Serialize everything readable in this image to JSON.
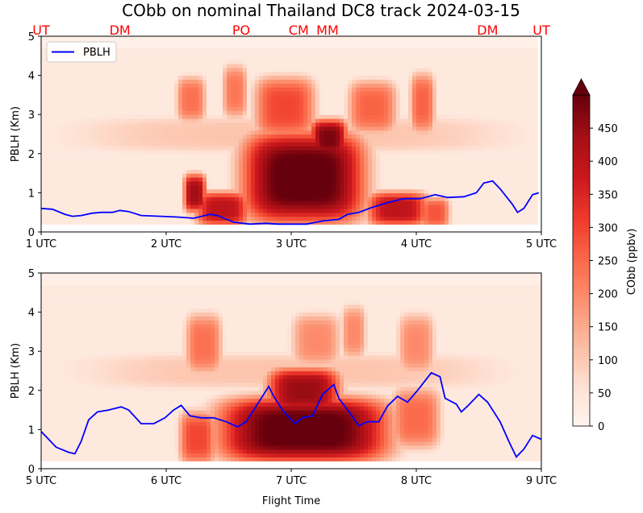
{
  "chart_data": {
    "type": "heatmap",
    "title": "CObb on nominal Thailand DC8 track 2024-03-15",
    "xlabel": "Flight Time",
    "colorbar": {
      "label": "CObb (ppbv)",
      "ticks": [
        0,
        50,
        100,
        150,
        200,
        250,
        300,
        350,
        400,
        450
      ],
      "range": [
        0,
        500
      ],
      "extend": "max",
      "colormap": "Reds",
      "stops": [
        "#fff5f0",
        "#fee0d2",
        "#fcbba1",
        "#fc9272",
        "#fb6a4a",
        "#ef3b2c",
        "#cb181d",
        "#a50f15",
        "#67000d"
      ]
    },
    "stations": [
      {
        "label": "UT",
        "t": 1.0
      },
      {
        "label": "DM",
        "t": 1.63
      },
      {
        "label": "PO",
        "t": 2.6
      },
      {
        "label": "CM",
        "t": 3.06
      },
      {
        "label": "MM",
        "t": 3.29
      },
      {
        "label": "DM",
        "t": 4.57
      },
      {
        "label": "UT",
        "t": 5.0
      }
    ],
    "legend": {
      "label": "PBLH",
      "color": "#0000ff",
      "placement": "upper-left"
    },
    "panels": [
      {
        "ylabel": "PBLH (Km)",
        "ylim": [
          0,
          5
        ],
        "xlim": [
          1,
          5
        ],
        "yticks": [
          "0",
          "1",
          "2",
          "3",
          "4",
          "5"
        ],
        "xticks": [
          {
            "t": 1,
            "label": "1 UTC"
          },
          {
            "t": 2,
            "label": "2 UTC"
          },
          {
            "t": 3,
            "label": "3 UTC"
          },
          {
            "t": 4,
            "label": "4 UTC"
          },
          {
            "t": 5,
            "label": "5 UTC"
          }
        ],
        "data_tmax": 4.96,
        "plumes": [
          {
            "t": 3.1,
            "z": 1.4,
            "st": 0.5,
            "sz": 1.2,
            "v": 520
          },
          {
            "t": 3.3,
            "z": 2.4,
            "st": 0.15,
            "sz": 0.5,
            "v": 480
          },
          {
            "t": 2.23,
            "z": 1.0,
            "st": 0.09,
            "sz": 0.5,
            "v": 440
          },
          {
            "t": 2.45,
            "z": 0.6,
            "st": 0.22,
            "sz": 0.45,
            "v": 400
          },
          {
            "t": 3.85,
            "z": 0.6,
            "st": 0.25,
            "sz": 0.45,
            "v": 400
          },
          {
            "t": 4.15,
            "z": 0.5,
            "st": 0.12,
            "sz": 0.4,
            "v": 280
          },
          {
            "t": 2.2,
            "z": 3.4,
            "st": 0.12,
            "sz": 0.6,
            "v": 240
          },
          {
            "t": 2.55,
            "z": 3.6,
            "st": 0.1,
            "sz": 0.7,
            "v": 230
          },
          {
            "t": 2.95,
            "z": 3.2,
            "st": 0.25,
            "sz": 0.8,
            "v": 300
          },
          {
            "t": 3.65,
            "z": 3.2,
            "st": 0.2,
            "sz": 0.7,
            "v": 260
          },
          {
            "t": 4.05,
            "z": 3.3,
            "st": 0.1,
            "sz": 0.8,
            "v": 260
          },
          {
            "t": 3.0,
            "z": 2.5,
            "st": 1.9,
            "sz": 0.5,
            "v": 110
          }
        ],
        "pblh": {
          "t": [
            1.0,
            1.09,
            1.19,
            1.25,
            1.32,
            1.41,
            1.48,
            1.57,
            1.63,
            1.7,
            1.8,
            1.96,
            2.09,
            2.22,
            2.35,
            2.41,
            2.54,
            2.67,
            2.8,
            2.89,
            3.12,
            3.25,
            3.38,
            3.45,
            3.54,
            3.64,
            3.77,
            3.9,
            4.03,
            4.15,
            4.25,
            4.38,
            4.48,
            4.54,
            4.61,
            4.67,
            4.77,
            4.81,
            4.86,
            4.93,
            4.98
          ],
          "z": [
            0.6,
            0.58,
            0.45,
            0.4,
            0.42,
            0.48,
            0.5,
            0.5,
            0.55,
            0.52,
            0.42,
            0.4,
            0.38,
            0.35,
            0.45,
            0.42,
            0.25,
            0.2,
            0.22,
            0.2,
            0.2,
            0.28,
            0.32,
            0.45,
            0.5,
            0.62,
            0.75,
            0.85,
            0.85,
            0.95,
            0.88,
            0.9,
            1.0,
            1.25,
            1.3,
            1.1,
            0.7,
            0.5,
            0.6,
            0.95,
            1.0
          ]
        }
      },
      {
        "ylabel": "PBLH (Km)",
        "ylim": [
          0,
          5
        ],
        "xlim": [
          5,
          9
        ],
        "yticks": [
          "0",
          "1",
          "2",
          "3",
          "4",
          "5"
        ],
        "xticks": [
          {
            "t": 5,
            "label": "5 UTC"
          },
          {
            "t": 6,
            "label": "6 UTC"
          },
          {
            "t": 7,
            "label": "7 UTC"
          },
          {
            "t": 8,
            "label": "8 UTC"
          },
          {
            "t": 9,
            "label": "9 UTC"
          }
        ],
        "data_tmax": 9.0,
        "plumes": [
          {
            "t": 7.1,
            "z": 1.0,
            "st": 0.7,
            "sz": 0.85,
            "v": 520
          },
          {
            "t": 7.1,
            "z": 2.0,
            "st": 0.3,
            "sz": 0.6,
            "v": 450
          },
          {
            "t": 6.25,
            "z": 0.8,
            "st": 0.15,
            "sz": 0.7,
            "v": 300
          },
          {
            "t": 8.0,
            "z": 1.3,
            "st": 0.2,
            "sz": 0.8,
            "v": 250
          },
          {
            "t": 6.3,
            "z": 3.2,
            "st": 0.15,
            "sz": 0.8,
            "v": 240
          },
          {
            "t": 7.2,
            "z": 3.3,
            "st": 0.2,
            "sz": 0.7,
            "v": 200
          },
          {
            "t": 7.5,
            "z": 3.5,
            "st": 0.1,
            "sz": 0.7,
            "v": 200
          },
          {
            "t": 8.0,
            "z": 3.2,
            "st": 0.15,
            "sz": 0.8,
            "v": 200
          },
          {
            "t": 7.0,
            "z": 2.5,
            "st": 1.8,
            "sz": 0.5,
            "v": 110
          }
        ],
        "pblh": {
          "t": [
            5.0,
            5.06,
            5.12,
            5.22,
            5.27,
            5.32,
            5.38,
            5.45,
            5.54,
            5.64,
            5.7,
            5.8,
            5.9,
            5.99,
            6.06,
            6.12,
            6.19,
            6.28,
            6.38,
            6.48,
            6.57,
            6.64,
            6.74,
            6.82,
            6.86,
            6.93,
            7.03,
            7.09,
            7.17,
            7.25,
            7.34,
            7.38,
            7.45,
            7.54,
            7.61,
            7.7,
            7.77,
            7.85,
            7.93,
            8.01,
            8.12,
            8.19,
            8.23,
            8.32,
            8.36,
            8.41,
            8.5,
            8.57,
            8.67,
            8.74,
            8.8,
            8.86,
            8.93,
            9.0
          ],
          "z": [
            0.95,
            0.75,
            0.55,
            0.42,
            0.38,
            0.7,
            1.25,
            1.45,
            1.5,
            1.58,
            1.5,
            1.15,
            1.15,
            1.3,
            1.5,
            1.62,
            1.35,
            1.3,
            1.3,
            1.2,
            1.07,
            1.2,
            1.7,
            2.1,
            1.85,
            1.5,
            1.15,
            1.3,
            1.35,
            1.9,
            2.15,
            1.8,
            1.5,
            1.1,
            1.2,
            1.2,
            1.6,
            1.85,
            1.7,
            2.0,
            2.45,
            2.35,
            1.8,
            1.65,
            1.45,
            1.6,
            1.9,
            1.7,
            1.2,
            0.7,
            0.3,
            0.5,
            0.85,
            0.75
          ]
        }
      }
    ]
  }
}
